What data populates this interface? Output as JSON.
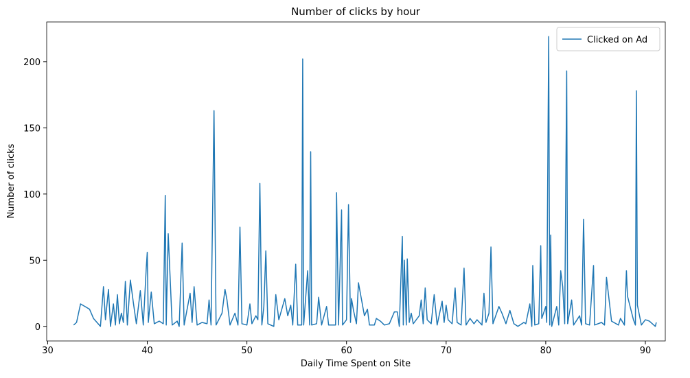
{
  "chart_data": {
    "type": "line",
    "title": "Number of clicks by hour",
    "xlabel": "Daily Time Spent on Site",
    "ylabel": "Number of clicks",
    "legend": "upper right",
    "xlim": [
      29.9,
      92.0
    ],
    "ylim": [
      -11,
      230
    ],
    "xticks": [
      30,
      40,
      50,
      60,
      70,
      80,
      90
    ],
    "yticks": [
      0,
      50,
      100,
      150,
      200
    ],
    "series": [
      {
        "name": "Clicked on Ad",
        "color": "#1f77b4",
        "x": [
          32.6,
          32.9,
          33.3,
          34.2,
          34.6,
          35.3,
          35.6,
          35.8,
          36.1,
          36.3,
          36.6,
          36.8,
          37.0,
          37.2,
          37.4,
          37.6,
          37.8,
          38.0,
          38.3,
          38.6,
          38.9,
          39.3,
          39.6,
          39.9,
          40.0,
          40.1,
          40.4,
          40.7,
          41.2,
          41.6,
          41.8,
          41.9,
          42.1,
          42.5,
          43.0,
          43.2,
          43.5,
          43.7,
          44.3,
          44.5,
          44.7,
          45.0,
          45.5,
          46.0,
          46.2,
          46.4,
          46.7,
          46.9,
          47.5,
          47.8,
          48.0,
          48.3,
          48.8,
          49.1,
          49.3,
          49.5,
          50.0,
          50.3,
          50.5,
          50.9,
          51.1,
          51.3,
          51.5,
          51.7,
          51.9,
          52.1,
          52.7,
          52.9,
          53.2,
          53.8,
          54.1,
          54.4,
          54.6,
          54.9,
          55.1,
          55.5,
          55.6,
          55.7,
          56.1,
          56.3,
          56.4,
          56.5,
          57.0,
          57.2,
          57.5,
          58.0,
          58.2,
          58.9,
          59.0,
          59.2,
          59.5,
          59.6,
          60.0,
          60.2,
          60.4,
          60.5,
          60.7,
          61.0,
          61.2,
          61.8,
          62.1,
          62.3,
          62.8,
          63.0,
          63.4,
          63.8,
          64.3,
          64.8,
          65.1,
          65.3,
          65.6,
          65.7,
          65.8,
          66.0,
          66.1,
          66.3,
          66.5,
          66.7,
          67.3,
          67.5,
          67.7,
          67.9,
          68.1,
          68.5,
          68.8,
          69.1,
          69.6,
          69.8,
          70.0,
          70.2,
          70.6,
          70.9,
          71.1,
          71.5,
          71.8,
          72.0,
          72.4,
          72.8,
          73.1,
          73.6,
          73.8,
          74.0,
          74.3,
          74.5,
          74.7,
          75.3,
          75.6,
          76.0,
          76.4,
          76.8,
          77.2,
          77.8,
          78.0,
          78.4,
          78.6,
          78.7,
          78.9,
          79.3,
          79.5,
          79.6,
          80.0,
          80.1,
          80.3,
          80.4,
          80.5,
          80.6,
          81.1,
          81.3,
          81.5,
          81.7,
          81.9,
          82.1,
          82.2,
          82.6,
          82.8,
          83.4,
          83.6,
          83.8,
          84.0,
          84.4,
          84.8,
          84.9,
          85.6,
          85.9,
          86.1,
          86.6,
          87.3,
          87.5,
          87.9,
          88.1,
          88.2,
          88.8,
          89.0,
          89.1,
          89.2,
          89.6,
          90.0,
          90.4,
          91.0,
          91.1
        ],
        "values": [
          1,
          3,
          17,
          13,
          6,
          0,
          30,
          5,
          28,
          0,
          17,
          1,
          24,
          2,
          10,
          3,
          34,
          1,
          35,
          18,
          2,
          27,
          1,
          45,
          56,
          3,
          26,
          2,
          4,
          2,
          99,
          1,
          70,
          1,
          4,
          0,
          63,
          1,
          25,
          3,
          30,
          1,
          3,
          2,
          20,
          1,
          163,
          1,
          10,
          28,
          20,
          1,
          10,
          1,
          75,
          2,
          1,
          17,
          2,
          8,
          5,
          108,
          1,
          15,
          57,
          2,
          0,
          24,
          5,
          21,
          8,
          16,
          1,
          47,
          1,
          1,
          202,
          1,
          42,
          1,
          132,
          1,
          2,
          22,
          1,
          15,
          1,
          1,
          101,
          1,
          88,
          1,
          5,
          92,
          3,
          21,
          12,
          2,
          33,
          8,
          13,
          1,
          1,
          6,
          4,
          1,
          2,
          11,
          11,
          0,
          68,
          1,
          50,
          1,
          51,
          3,
          10,
          2,
          8,
          20,
          2,
          29,
          5,
          2,
          24,
          1,
          19,
          3,
          16,
          5,
          2,
          29,
          3,
          1,
          44,
          1,
          6,
          2,
          5,
          1,
          25,
          3,
          10,
          60,
          2,
          15,
          10,
          2,
          12,
          2,
          0,
          3,
          2,
          17,
          0,
          46,
          1,
          2,
          61,
          6,
          15,
          3,
          219,
          1,
          69,
          0,
          15,
          1,
          42,
          30,
          2,
          193,
          2,
          20,
          1,
          8,
          1,
          81,
          2,
          1,
          46,
          1,
          3,
          1,
          37,
          4,
          1,
          6,
          1,
          42,
          23,
          5,
          1,
          178,
          16,
          1,
          5,
          4,
          0,
          3
        ]
      }
    ]
  }
}
